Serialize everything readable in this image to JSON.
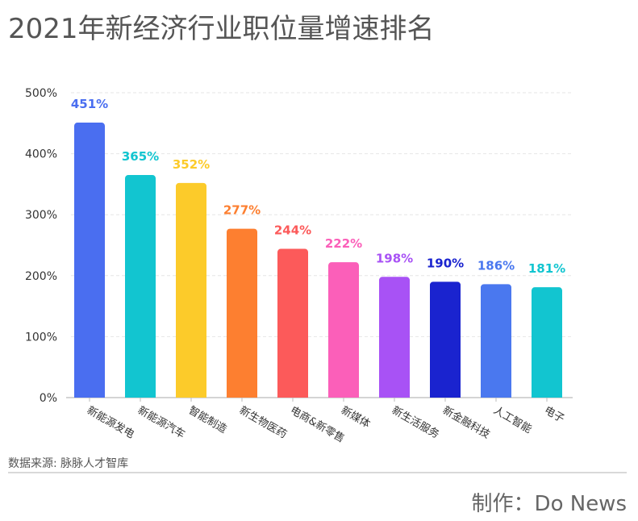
{
  "title": "2021年新经济行业职位量增速排名",
  "source": "数据来源: 脉脉人才智库",
  "maker": "制作：Do News",
  "chart_data": {
    "type": "bar",
    "categories": [
      "新能源发电",
      "新能源汽车",
      "智能制造",
      "新生物医药",
      "电商&新零售",
      "新媒体",
      "新生活服务",
      "新金融科技",
      "人工智能",
      "电子"
    ],
    "values": [
      451,
      365,
      352,
      277,
      244,
      222,
      198,
      190,
      186,
      181
    ],
    "value_labels": [
      "451%",
      "365%",
      "352%",
      "277%",
      "244%",
      "222%",
      "198%",
      "190%",
      "186%",
      "181%"
    ],
    "colors": [
      "#4a6ef0",
      "#12c5d0",
      "#fccb2a",
      "#fd7f30",
      "#fc5a5a",
      "#fb5fb9",
      "#a852f5",
      "#1a23cf",
      "#4a78ef",
      "#12c5d0"
    ],
    "yticks": [
      "0%",
      "100%",
      "200%",
      "300%",
      "400%",
      "500%"
    ],
    "ylim": [
      0,
      500
    ],
    "grid": true
  }
}
